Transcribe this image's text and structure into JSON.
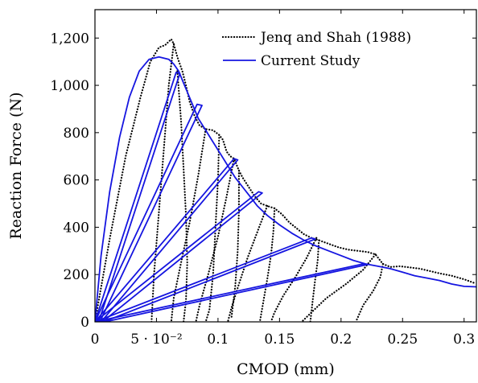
{
  "chart_data": {
    "type": "line",
    "title": "",
    "xlabel": "CMOD (mm)",
    "ylabel": "Reaction Force (N)",
    "xlim": [
      0,
      0.31
    ],
    "ylim": [
      0,
      1320
    ],
    "x_ticks": [
      {
        "value": 0,
        "label": "0"
      },
      {
        "value": 0.05,
        "label": "5 · 10⁻²"
      },
      {
        "value": 0.1,
        "label": "0.1"
      },
      {
        "value": 0.15,
        "label": "0.15"
      },
      {
        "value": 0.2,
        "label": "0.2"
      },
      {
        "value": 0.25,
        "label": "0.25"
      },
      {
        "value": 0.3,
        "label": "0.3"
      }
    ],
    "y_ticks": [
      {
        "value": 0,
        "label": "0"
      },
      {
        "value": 200,
        "label": "200"
      },
      {
        "value": 400,
        "label": "400"
      },
      {
        "value": 600,
        "label": "600"
      },
      {
        "value": 800,
        "label": "800"
      },
      {
        "value": 1000,
        "label": "1,000"
      },
      {
        "value": 1200,
        "label": "1,200"
      }
    ],
    "legend_position": "top-right",
    "grid": false,
    "series": [
      {
        "name": "Jenq and Shah (1988)",
        "color": "#000000",
        "style": "dotted",
        "segments": [
          [
            [
              0,
              0
            ],
            [
              0.012,
              350
            ],
            [
              0.025,
              700
            ],
            [
              0.037,
              950
            ],
            [
              0.045,
              1100
            ],
            [
              0.052,
              1160
            ],
            [
              0.057,
              1170
            ],
            [
              0.06,
              1185
            ],
            [
              0.062,
              1195
            ],
            [
              0.064,
              1175
            ],
            [
              0.067,
              1120
            ],
            [
              0.071,
              1060
            ],
            [
              0.074,
              1000
            ],
            [
              0.077,
              930
            ],
            [
              0.081,
              870
            ],
            [
              0.085,
              830
            ],
            [
              0.09,
              815
            ],
            [
              0.096,
              810
            ],
            [
              0.101,
              790
            ],
            [
              0.104,
              770
            ],
            [
              0.107,
              720
            ],
            [
              0.11,
              700
            ],
            [
              0.113,
              690
            ],
            [
              0.117,
              640
            ],
            [
              0.12,
              610
            ],
            [
              0.125,
              570
            ],
            [
              0.13,
              530
            ],
            [
              0.135,
              500
            ],
            [
              0.14,
              490
            ],
            [
              0.146,
              480
            ],
            [
              0.152,
              455
            ],
            [
              0.158,
              420
            ],
            [
              0.164,
              395
            ],
            [
              0.17,
              370
            ],
            [
              0.176,
              355
            ],
            [
              0.182,
              345
            ],
            [
              0.19,
              330
            ],
            [
              0.198,
              315
            ],
            [
              0.206,
              305
            ],
            [
              0.214,
              300
            ],
            [
              0.222,
              295
            ],
            [
              0.228,
              285
            ],
            [
              0.234,
              245
            ],
            [
              0.24,
              232
            ],
            [
              0.248,
              235
            ],
            [
              0.256,
              230
            ],
            [
              0.264,
              225
            ],
            [
              0.272,
              215
            ],
            [
              0.28,
              205
            ],
            [
              0.29,
              195
            ],
            [
              0.3,
              180
            ],
            [
              0.308,
              165
            ]
          ],
          [
            [
              0.064,
              1175
            ],
            [
              0.06,
              1000
            ],
            [
              0.057,
              800
            ],
            [
              0.054,
              600
            ],
            [
              0.051,
              400
            ],
            [
              0.048,
              200
            ],
            [
              0.046,
              0
            ]
          ],
          [
            [
              0.067,
              1060
            ],
            [
              0.07,
              850
            ],
            [
              0.072,
              650
            ],
            [
              0.074,
              450
            ],
            [
              0.075,
              250
            ],
            [
              0.074,
              90
            ],
            [
              0.072,
              0
            ]
          ],
          [
            [
              0.09,
              815
            ],
            [
              0.084,
              620
            ],
            [
              0.077,
              420
            ],
            [
              0.07,
              250
            ],
            [
              0.064,
              100
            ],
            [
              0.062,
              0
            ]
          ],
          [
            [
              0.101,
              790
            ],
            [
              0.1,
              600
            ],
            [
              0.098,
              400
            ],
            [
              0.096,
              200
            ],
            [
              0.093,
              50
            ],
            [
              0.09,
              0
            ]
          ],
          [
            [
              0.113,
              690
            ],
            [
              0.107,
              530
            ],
            [
              0.1,
              360
            ],
            [
              0.092,
              200
            ],
            [
              0.085,
              70
            ],
            [
              0.082,
              0
            ]
          ],
          [
            [
              0.117,
              640
            ],
            [
              0.117,
              470
            ],
            [
              0.116,
              300
            ],
            [
              0.114,
              150
            ],
            [
              0.111,
              20
            ]
          ],
          [
            [
              0.14,
              490
            ],
            [
              0.132,
              380
            ],
            [
              0.124,
              270
            ],
            [
              0.117,
              160
            ],
            [
              0.111,
              60
            ],
            [
              0.108,
              0
            ]
          ],
          [
            [
              0.146,
              480
            ],
            [
              0.145,
              380
            ],
            [
              0.143,
              280
            ],
            [
              0.14,
              180
            ],
            [
              0.137,
              90
            ],
            [
              0.134,
              0
            ]
          ],
          [
            [
              0.18,
              355
            ],
            [
              0.172,
              270
            ],
            [
              0.163,
              190
            ],
            [
              0.153,
              110
            ],
            [
              0.146,
              40
            ],
            [
              0.143,
              0
            ]
          ],
          [
            [
              0.182,
              345
            ],
            [
              0.181,
              260
            ],
            [
              0.179,
              180
            ],
            [
              0.177,
              90
            ],
            [
              0.175,
              0
            ]
          ],
          [
            [
              0.228,
              285
            ],
            [
              0.218,
              220
            ],
            [
              0.204,
              160
            ],
            [
              0.188,
              100
            ],
            [
              0.176,
              40
            ],
            [
              0.168,
              0
            ]
          ],
          [
            [
              0.234,
              245
            ],
            [
              0.232,
              190
            ],
            [
              0.226,
              130
            ],
            [
              0.218,
              70
            ],
            [
              0.212,
              0
            ]
          ]
        ]
      },
      {
        "name": "Current Study",
        "color": "#1515e0",
        "style": "solid",
        "segments": [
          [
            [
              0,
              0
            ],
            [
              0.005,
              280
            ],
            [
              0.012,
              550
            ],
            [
              0.02,
              780
            ],
            [
              0.028,
              950
            ],
            [
              0.036,
              1060
            ],
            [
              0.044,
              1110
            ],
            [
              0.052,
              1120
            ],
            [
              0.06,
              1110
            ],
            [
              0.064,
              1090
            ],
            [
              0.068,
              1060
            ],
            [
              0.072,
              1010
            ],
            [
              0.076,
              960
            ],
            [
              0.08,
              910
            ],
            [
              0.084,
              860
            ],
            [
              0.09,
              810
            ],
            [
              0.096,
              760
            ],
            [
              0.102,
              710
            ],
            [
              0.108,
              660
            ],
            [
              0.114,
              610
            ],
            [
              0.12,
              570
            ],
            [
              0.126,
              530
            ],
            [
              0.132,
              490
            ],
            [
              0.14,
              450
            ],
            [
              0.15,
              410
            ],
            [
              0.16,
              375
            ],
            [
              0.17,
              345
            ],
            [
              0.18,
              320
            ],
            [
              0.19,
              300
            ],
            [
              0.2,
              280
            ],
            [
              0.21,
              260
            ],
            [
              0.22,
              245
            ],
            [
              0.23,
              235
            ],
            [
              0.24,
              225
            ],
            [
              0.25,
              210
            ],
            [
              0.26,
              195
            ],
            [
              0.27,
              185
            ],
            [
              0.28,
              175
            ],
            [
              0.29,
              160
            ],
            [
              0.3,
              150
            ],
            [
              0.31,
              148
            ]
          ],
          [
            [
              0,
              0
            ],
            [
              0.066,
              1055
            ],
            [
              0.069,
              1050
            ],
            [
              0.003,
              0
            ]
          ],
          [
            [
              0,
              0
            ],
            [
              0.083,
              920
            ],
            [
              0.087,
              915
            ],
            [
              0.004,
              0
            ]
          ],
          [
            [
              0,
              0
            ],
            [
              0.113,
              690
            ],
            [
              0.116,
              685
            ],
            [
              0.005,
              0
            ]
          ],
          [
            [
              0,
              0
            ],
            [
              0.133,
              550
            ],
            [
              0.136,
              545
            ],
            [
              0.006,
              0
            ]
          ],
          [
            [
              0,
              0
            ],
            [
              0.176,
              355
            ],
            [
              0.179,
              350
            ],
            [
              0.007,
              0
            ]
          ],
          [
            [
              0,
              0
            ],
            [
              0.218,
              245
            ],
            [
              0.222,
              243
            ],
            [
              0.008,
              0
            ]
          ]
        ]
      }
    ]
  }
}
